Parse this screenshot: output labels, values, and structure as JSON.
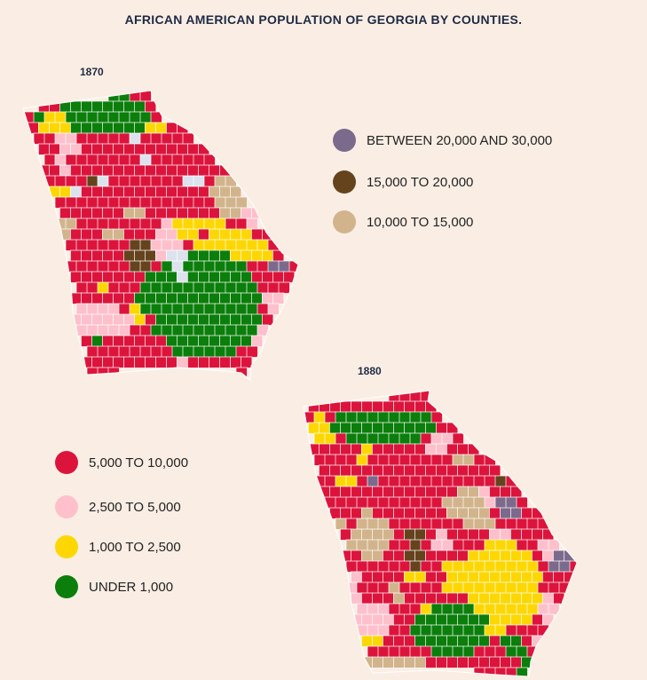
{
  "title": "AFRICAN AMERICAN POPULATION OF GEORGIA BY COUNTIES.",
  "maps": [
    {
      "year": "1870"
    },
    {
      "year": "1880"
    }
  ],
  "legend_top": [
    {
      "label": "BETWEEN 20,000 AND 30,000",
      "color": "#7c6a8c",
      "key": "between-20000-30000"
    },
    {
      "label": "15,000 TO 20,000",
      "color": "#65431d",
      "key": "15000-20000"
    },
    {
      "label": "10,000 TO 15,000",
      "color": "#d2b48c",
      "key": "10000-15000"
    }
  ],
  "legend_bottom": [
    {
      "label": "5,000 TO 10,000",
      "color": "#dc143c",
      "key": "5000-10000"
    },
    {
      "label": "2,500 TO 5,000",
      "color": "#ffc0cb",
      "key": "2500-5000"
    },
    {
      "label": "1,000 TO 2,500",
      "color": "#ffd700",
      "key": "1000-2500"
    },
    {
      "label": "UNDER 1,000",
      "color": "#0b7e0b",
      "key": "under-1000"
    }
  ],
  "no_data_color": "#dce3ee"
}
